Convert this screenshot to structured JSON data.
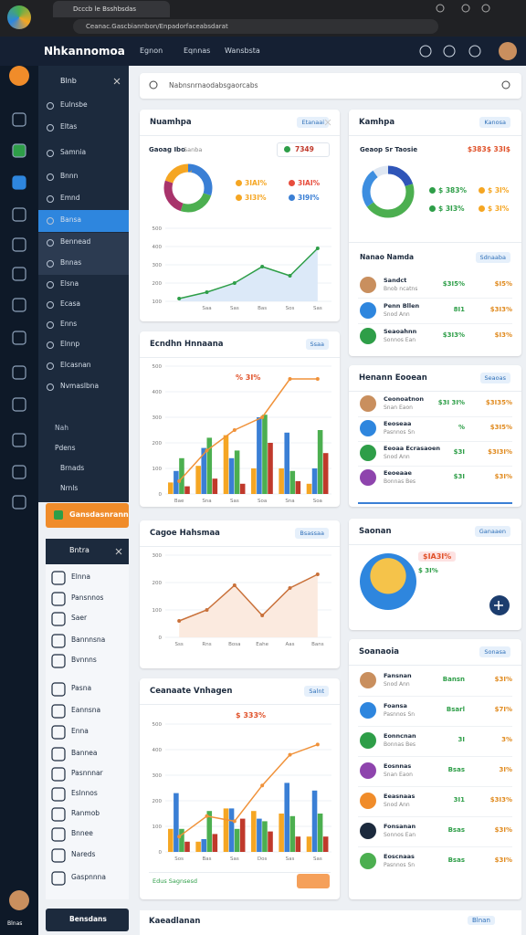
{
  "browser": {
    "tab_title": "Dcccb le Bsshbsdas",
    "url": "Ceanac.Gascbiannbon/Enpadorfaceabsdarat"
  },
  "header": {
    "title": "Nhkannomoa",
    "nav": [
      "Egnon",
      "Eqnnas",
      "Wansbsta"
    ]
  },
  "sidebar": {
    "title": "Blnb",
    "items": [
      "Eulnsbe",
      "Eltas",
      "Samnia",
      "Bnnn",
      "Emnd",
      "Bansa",
      "Bennead",
      "Bnnas",
      "Elsna",
      "Ecasa",
      "Enns",
      "Elnnp",
      "Elcasnan",
      "Nvmaslbna"
    ],
    "section": "Nah",
    "sub": [
      "Pdens",
      "Brnads",
      "Nrnls"
    ],
    "cta": "Gansdasnrann"
  },
  "panel": {
    "title": "Bntra",
    "items": [
      "Elnna",
      "Pansnnos",
      "Saer",
      "Bannnsna",
      "Bvnnns",
      "Pasna",
      "Eannsna",
      "Enna",
      "Bannea",
      "Pasnnnar",
      "Eslnnos",
      "Ranmob",
      "Bnnee",
      "Nareds",
      "Gaspnnna"
    ]
  },
  "user": {
    "name": "Blnas"
  },
  "bottom": {
    "button": "Bensdans",
    "title": "Kaeadlanan",
    "badge": "Blnan"
  },
  "search": {
    "placeholder": "Nabnsnrnaodabsgaorcabs"
  },
  "cards": [
    {
      "title": "Nuamhpa",
      "badge": "Etanaai",
      "label": "Gaoag Ibo",
      "sublabel": "Sanba",
      "pill": "7349",
      "donut": {
        "type": "donut",
        "values": [
          30,
          25,
          25,
          20
        ],
        "colors": [
          "#3a7fd5",
          "#4caf50",
          "#a8336b",
          "#f5a623"
        ]
      },
      "legend": [
        {
          "label": "3IAI%",
          "color": "#f5a623"
        },
        {
          "label": "3IAI%",
          "color": "#e74c3c"
        },
        {
          "label": "3I3I%",
          "color": "#f5a623"
        },
        {
          "label": "3I9I%",
          "color": "#3a7fd5"
        }
      ],
      "chart": {
        "type": "area",
        "categories": [
          null,
          "Saa",
          "Sas",
          "Bas",
          "Sos",
          "Sas"
        ],
        "values": [
          115,
          150,
          200,
          290,
          240,
          390
        ],
        "ylim": [
          100,
          500
        ],
        "yticks": [
          100,
          200,
          300,
          400,
          500
        ],
        "color": "#2e9e48",
        "fill": "#dce9f8"
      }
    },
    {
      "title": "Ecndhn Hnnaana",
      "badge": "Ssaa",
      "annotation": "% 3I%",
      "chart": {
        "type": "bar",
        "categories": [
          "Bae",
          "Sna",
          "Sas",
          "Soa",
          "Sna",
          "Soa"
        ],
        "ylim": [
          0,
          500
        ],
        "yticks": [
          0,
          100,
          200,
          300,
          400,
          500
        ],
        "series": [
          {
            "color": "#f5a623",
            "values": [
              45,
              110,
              230,
              100,
              100,
              40
            ]
          },
          {
            "color": "#3a7fd5",
            "values": [
              90,
              180,
              140,
              300,
              240,
              100
            ]
          },
          {
            "color": "#4caf50",
            "values": [
              140,
              220,
              170,
              310,
              90,
              250
            ]
          },
          {
            "color": "#c0392b",
            "values": [
              30,
              60,
              40,
              200,
              50,
              160
            ]
          }
        ],
        "line": {
          "color": "#f0923a",
          "values": [
            50,
            170,
            250,
            300,
            450,
            450
          ]
        }
      }
    },
    {
      "title": "Cagoe Hahsmaa",
      "badge": "Bsassaa",
      "chart": {
        "type": "area",
        "categories": [
          "Sss",
          "Rns",
          "Bosa",
          "Eahe",
          "Aas",
          "Bans"
        ],
        "values": [
          60,
          100,
          190,
          80,
          180,
          230
        ],
        "ylim": [
          0,
          300
        ],
        "yticks": [
          0,
          100,
          200,
          300
        ],
        "color": "#c9713a",
        "fill": "#fbeadf"
      }
    },
    {
      "title": "Ceanaate Vnhagen",
      "badge": "Salnt",
      "annotation": "$ 333%",
      "footer": "Edus Sagnsesd",
      "chart": {
        "type": "bar",
        "categories": [
          "Sos",
          "Bas",
          "Sas",
          "Dos",
          "Sas",
          "Sas"
        ],
        "ylim": [
          0,
          500
        ],
        "yticks": [
          0,
          100,
          200,
          300,
          400,
          500
        ],
        "series": [
          {
            "color": "#f5a623",
            "values": [
              90,
              40,
              170,
              160,
              150,
              60
            ]
          },
          {
            "color": "#3a7fd5",
            "values": [
              230,
              50,
              170,
              130,
              270,
              240
            ]
          },
          {
            "color": "#4caf50",
            "values": [
              90,
              160,
              90,
              120,
              140,
              150
            ]
          },
          {
            "color": "#c0392b",
            "values": [
              40,
              70,
              130,
              80,
              60,
              60
            ]
          }
        ],
        "line": {
          "color": "#f0923a",
          "values": [
            60,
            140,
            120,
            260,
            380,
            420
          ]
        }
      }
    },
    {
      "title": "Kamhpa",
      "badge": "Kanosa",
      "label": "Geaop Sr Taosie",
      "total": "$383$ 33I$",
      "donut": {
        "type": "donut",
        "values": [
          20,
          45,
          25,
          10
        ],
        "colors": [
          "#2f55b8",
          "#4caf50",
          "#3d8ee0",
          "#dfe7f2"
        ]
      },
      "legend": [
        {
          "label": "$ 383%",
          "color": "#2e9e48"
        },
        {
          "label": "$ 3I%",
          "color": "#f5a623"
        },
        {
          "label": "$ 3I3%",
          "color": "#2e9e48"
        },
        {
          "label": "$ 3I%",
          "color": "#f5a623"
        }
      ],
      "subtitle": "Nanao Namda",
      "subbadge": "Sdnaaba",
      "rows": [
        {
          "name": "Sandct",
          "sub": "Bnob ncatns",
          "a": "$3I5%",
          "b": "$I5%"
        },
        {
          "name": "Penn Bllen",
          "sub": "Snod Ann",
          "a": "8I1",
          "b": "$3I3%"
        },
        {
          "name": "Seaoahnn",
          "sub": "Sonnos Ean",
          "a": "$3I3%",
          "b": "$I3%"
        }
      ]
    },
    {
      "title": "Henann Eooean",
      "badge": "Seaoas",
      "rows": [
        {
          "name": "Ceonoatnon",
          "sub": "Snan Eaon",
          "a": "$3I 3I%",
          "b": "$3I35%"
        },
        {
          "name": "Eeoseaa",
          "sub": "Pasnnos Sn",
          "a": "%",
          "b": "$3I5%"
        },
        {
          "name": "Eeoaa Ecrasaoen",
          "sub": "Snod Ann",
          "a": "$3I",
          "b": "$3I3I%"
        },
        {
          "name": "Eeoeaae",
          "sub": "Bonnas Bes",
          "a": "$3I",
          "b": "$3I%"
        }
      ]
    },
    {
      "title": "Saonan",
      "badge": "Ganaaen",
      "pill": "$IA3I%",
      "note": "$ 3I%"
    },
    {
      "title": "Soanaoia",
      "badge": "Sonasa",
      "rows": [
        {
          "name": "Fansnan",
          "sub": "Snod Ann",
          "a": "Bansn",
          "b": "$3I%"
        },
        {
          "name": "Foansa",
          "sub": "Pasnnos Sn",
          "a": "Bsarl",
          "b": "$7I%"
        },
        {
          "name": "Eonncnan",
          "sub": "Bonnas Bes",
          "a": "3I",
          "b": "3%"
        },
        {
          "name": "Eosnnas",
          "sub": "Snan Eaon",
          "a": "Bsas",
          "b": "3I%"
        },
        {
          "name": "Eeasnaas",
          "sub": "Snod Ann",
          "a": "3I1",
          "b": "$3I3%"
        },
        {
          "name": "Fonsanan",
          "sub": "Sonnos Ean",
          "a": "Bsas",
          "b": "$3I%"
        },
        {
          "name": "Eoscnaas",
          "sub": "Pasnnos Sn",
          "a": "Bsas",
          "b": "$3I%"
        }
      ]
    }
  ]
}
